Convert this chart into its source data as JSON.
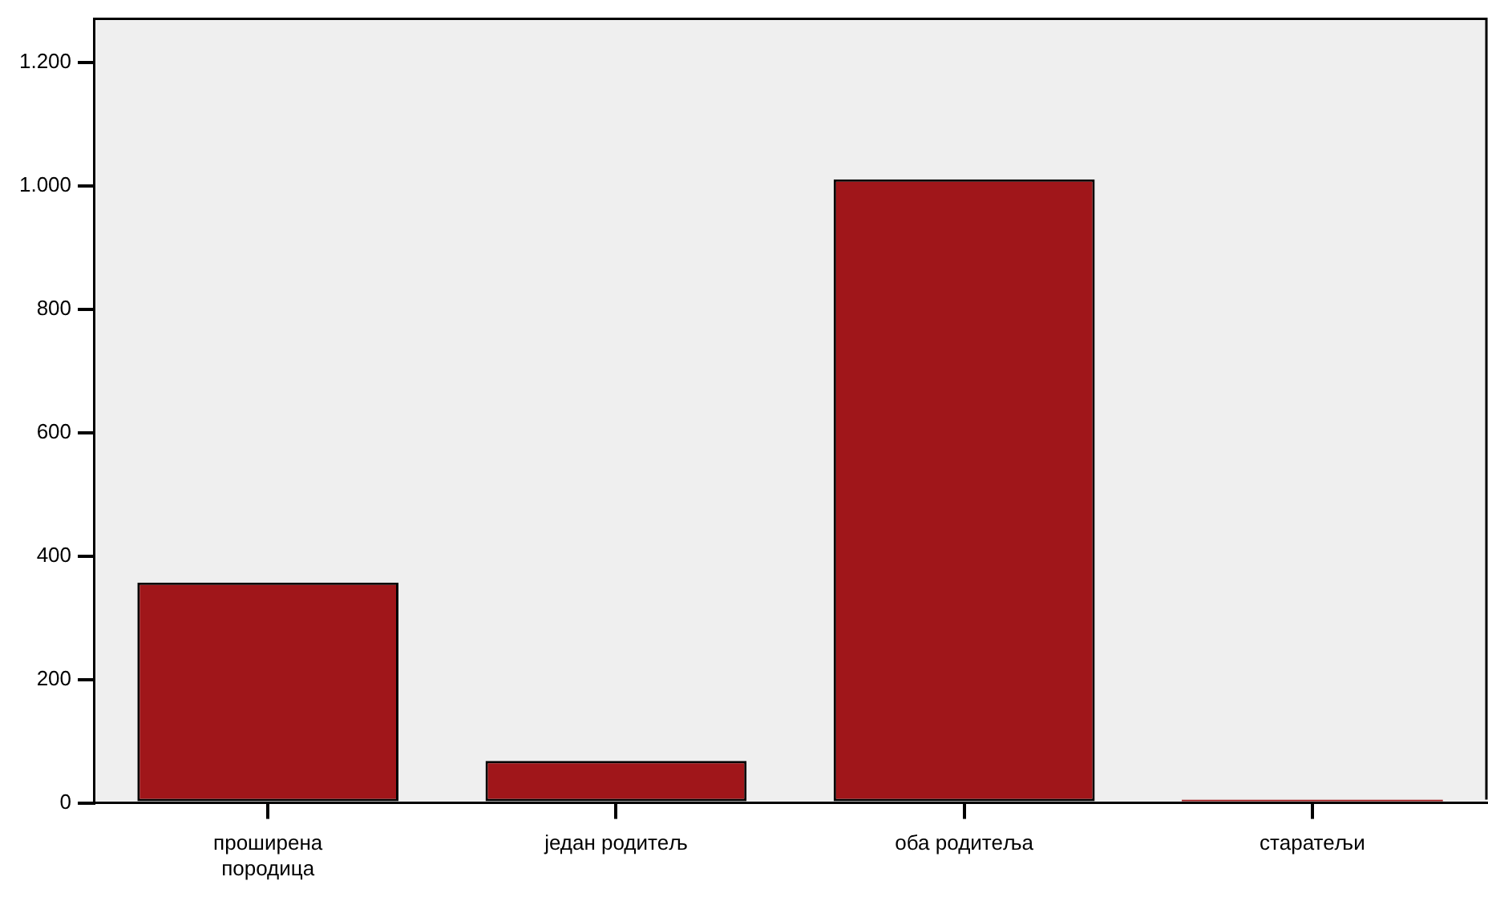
{
  "chart_data": {
    "type": "bar",
    "categories": [
      "проширена породица",
      "један родитељ",
      "оба родитеља",
      "старатељи"
    ],
    "values": [
      357,
      68,
      1010,
      5
    ],
    "color": "#a0161a",
    "ylim": [
      0,
      1270
    ],
    "yticks": [
      0,
      200,
      400,
      600,
      800,
      {
        "value": 1000,
        "label": "1.000"
      },
      {
        "value": 1200,
        "label": "1.200"
      }
    ],
    "grid": false,
    "legend": false
  }
}
